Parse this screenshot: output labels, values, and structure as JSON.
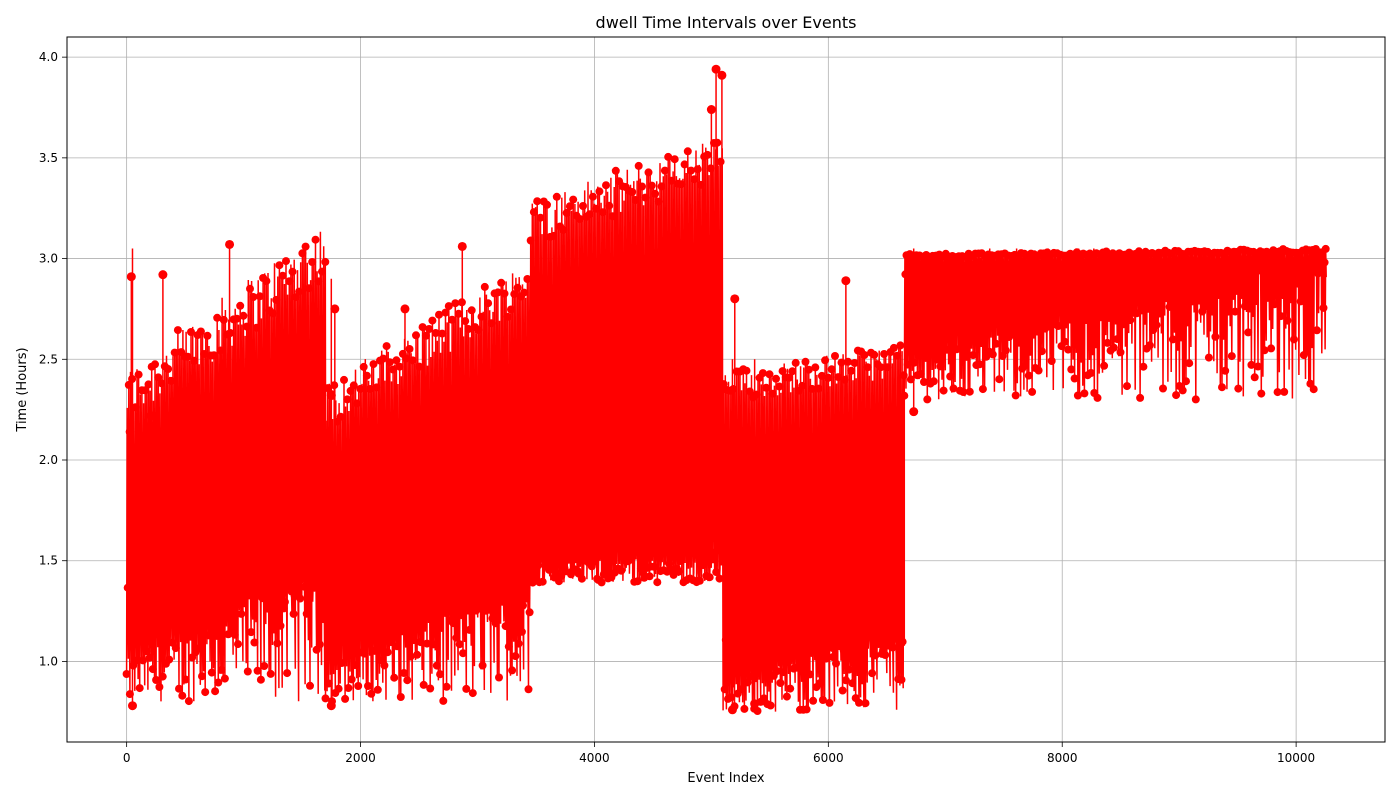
{
  "chart_data": {
    "type": "line",
    "title": "dwell Time Intervals over Events",
    "xlabel": "Event Index",
    "ylabel": "Time (Hours)",
    "xlim": [
      -510,
      10760
    ],
    "ylim": [
      0.6,
      4.1
    ],
    "xticks": [
      0,
      2000,
      4000,
      6000,
      8000,
      10000
    ],
    "yticks": [
      1.0,
      1.5,
      2.0,
      2.5,
      3.0,
      3.5,
      4.0
    ],
    "xtick_labels": [
      "0",
      "2000",
      "4000",
      "6000",
      "8000",
      "10000"
    ],
    "ytick_labels": [
      "1.0",
      "1.5",
      "2.0",
      "2.5",
      "3.0",
      "3.5",
      "4.0"
    ],
    "grid": true,
    "series": [
      {
        "color": "#ff0000",
        "marker": "circle",
        "n_points": 10250,
        "segments": [
          {
            "x_start": 0,
            "x_end": 1700,
            "lower_band": [
              0.8,
              1.5
            ],
            "upper_band": [
              2.0,
              3.15
            ],
            "typical_low": 1.35,
            "typical_high": 3.05
          },
          {
            "x_start": 1700,
            "x_end": 3450,
            "lower_band": [
              0.8,
              1.4
            ],
            "upper_band": [
              2.0,
              2.95
            ],
            "typical_low": 1.3,
            "typical_high": 2.9
          },
          {
            "x_start": 3450,
            "x_end": 5100,
            "lower_band": [
              1.4,
              1.9
            ],
            "upper_band": [
              3.05,
              3.95
            ],
            "typical_low": 1.45,
            "typical_high": 3.5
          },
          {
            "x_start": 5100,
            "x_end": 6650,
            "lower_band": [
              0.75,
              1.2
            ],
            "upper_band": [
              2.3,
              2.95
            ],
            "typical_low": 1.1,
            "typical_high": 2.5
          },
          {
            "x_start": 6650,
            "x_end": 10250,
            "lower_band": [
              2.3,
              3.0
            ],
            "upper_band": [
              3.0,
              3.08
            ],
            "typical_low": 2.95,
            "typical_high": 3.04
          }
        ],
        "outliers": [
          {
            "x": 40,
            "y": 2.91
          },
          {
            "x": 30,
            "y": 2.14
          },
          {
            "x": 210,
            "y": 2.22
          },
          {
            "x": 310,
            "y": 2.92
          },
          {
            "x": 880,
            "y": 3.07
          },
          {
            "x": 1780,
            "y": 2.75
          },
          {
            "x": 1750,
            "y": 2.32
          },
          {
            "x": 2380,
            "y": 2.75
          },
          {
            "x": 2870,
            "y": 3.06
          },
          {
            "x": 5040,
            "y": 3.94
          },
          {
            "x": 5090,
            "y": 3.91
          },
          {
            "x": 5000,
            "y": 3.74
          },
          {
            "x": 5200,
            "y": 2.8
          },
          {
            "x": 6150,
            "y": 2.89
          },
          {
            "x": 6730,
            "y": 2.24
          },
          {
            "x": 7380,
            "y": 2.69
          },
          {
            "x": 7610,
            "y": 2.78
          },
          {
            "x": 7880,
            "y": 2.75
          },
          {
            "x": 8270,
            "y": 2.72
          },
          {
            "x": 8140,
            "y": 2.88
          },
          {
            "x": 9480,
            "y": 2.88
          },
          {
            "x": 5370,
            "y": 0.79
          },
          {
            "x": 5180,
            "y": 0.76
          },
          {
            "x": 1750,
            "y": 0.78
          },
          {
            "x": 50,
            "y": 0.78
          }
        ]
      }
    ]
  }
}
